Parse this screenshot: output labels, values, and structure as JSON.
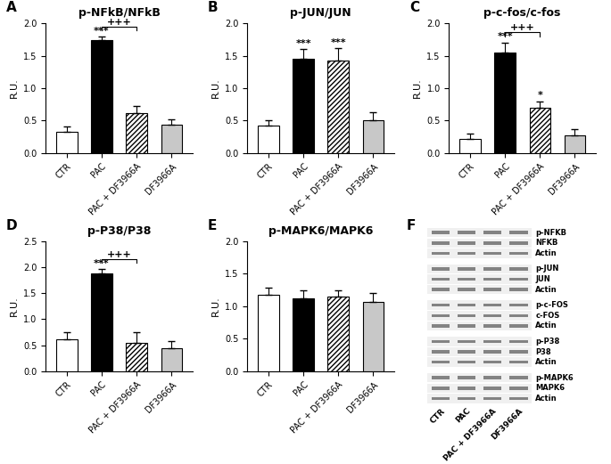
{
  "chart_data": [
    {
      "type": "bar",
      "panel": "A",
      "title": "p-NFkB/NFkB",
      "y_label": "R.U.",
      "categories": [
        "CTR",
        "PAC",
        "PAC + DF3966A",
        "DF3966A"
      ],
      "values": [
        0.33,
        1.74,
        0.62,
        0.44
      ],
      "errors": [
        0.08,
        0.05,
        0.1,
        0.08
      ],
      "colors": [
        "#ffffff",
        "#000000",
        "#ffffff",
        "#c8c8c8"
      ],
      "ylim": [
        0,
        2.0
      ],
      "yticks": [
        {
          "value": 0,
          "label": "0.0"
        },
        {
          "value": 0.5,
          "label": "0.5"
        },
        {
          "value": 1.0,
          "label": "1.0"
        },
        {
          "value": 1.5,
          "label": "1.5"
        },
        {
          "value": 2.0,
          "label": "2.0"
        }
      ],
      "significance": [
        {
          "text": "***",
          "category": "PAC"
        }
      ],
      "brackets": [
        {
          "text": "+++",
          "from": "PAC",
          "to": "PAC + DF3966A"
        }
      ]
    },
    {
      "type": "bar",
      "panel": "B",
      "title": "p-JUN/JUN",
      "y_label": "R.U.",
      "categories": [
        "CTR",
        "PAC",
        "PAC + DF3966A",
        "DF3966A"
      ],
      "values": [
        0.42,
        1.45,
        1.43,
        0.51
      ],
      "errors": [
        0.08,
        0.15,
        0.18,
        0.12
      ],
      "colors": [
        "#ffffff",
        "#000000",
        "#ffffff",
        "#c8c8c8"
      ],
      "ylim": [
        0,
        2.0
      ],
      "yticks": [
        {
          "value": 0,
          "label": "0.0"
        },
        {
          "value": 0.5,
          "label": "0.5"
        },
        {
          "value": 1.0,
          "label": "1.0"
        },
        {
          "value": 1.5,
          "label": "1.5"
        },
        {
          "value": 2.0,
          "label": "2.0"
        }
      ],
      "significance": [
        {
          "text": "***",
          "category": "PAC"
        },
        {
          "text": "***",
          "category": "PAC + DF3966A"
        }
      ],
      "brackets": []
    },
    {
      "type": "bar",
      "panel": "C",
      "title": "p-c-fos/c-fos",
      "y_label": "R.U.",
      "categories": [
        "CTR",
        "PAC",
        "PAC + DF3966A",
        "DF3966A"
      ],
      "values": [
        0.22,
        1.55,
        0.7,
        0.27
      ],
      "errors": [
        0.08,
        0.15,
        0.1,
        0.1
      ],
      "colors": [
        "#ffffff",
        "#000000",
        "#ffffff",
        "#c8c8c8"
      ],
      "ylim": [
        0,
        2.0
      ],
      "yticks": [
        {
          "value": 0,
          "label": "0.0"
        },
        {
          "value": 0.5,
          "label": "0.5"
        },
        {
          "value": 1.0,
          "label": "1.0"
        },
        {
          "value": 1.5,
          "label": "1.5"
        },
        {
          "value": 2.0,
          "label": "2.0"
        }
      ],
      "significance": [
        {
          "text": "***",
          "category": "PAC"
        },
        {
          "text": "*",
          "category": "PAC + DF3966A"
        }
      ],
      "brackets": [
        {
          "text": "+++",
          "from": "PAC",
          "to": "PAC + DF3966A"
        }
      ]
    },
    {
      "type": "bar",
      "panel": "D",
      "title": "p-P38/P38",
      "y_label": "R.U.",
      "categories": [
        "CTR",
        "PAC",
        "PAC + DF3966A",
        "DF3966A"
      ],
      "values": [
        0.62,
        1.88,
        0.55,
        0.45
      ],
      "errors": [
        0.13,
        0.08,
        0.2,
        0.13
      ],
      "colors": [
        "#ffffff",
        "#000000",
        "#ffffff",
        "#c8c8c8"
      ],
      "ylim": [
        0,
        2.5
      ],
      "yticks": [
        {
          "value": 0,
          "label": "0.0"
        },
        {
          "value": 0.5,
          "label": "0.5"
        },
        {
          "value": 1.0,
          "label": "1.0"
        },
        {
          "value": 1.5,
          "label": "1.5"
        },
        {
          "value": 2.0,
          "label": "2.0"
        },
        {
          "value": 2.5,
          "label": "2.5"
        }
      ],
      "significance": [
        {
          "text": "***",
          "category": "PAC"
        }
      ],
      "brackets": [
        {
          "text": "+++",
          "from": "PAC",
          "to": "PAC + DF3966A"
        }
      ]
    },
    {
      "type": "bar",
      "panel": "E",
      "title": "p-MAPK6/MAPK6",
      "y_label": "R.U.",
      "categories": [
        "CTR",
        "PAC",
        "PAC + DF3966A",
        "DF3966A"
      ],
      "values": [
        1.18,
        1.12,
        1.15,
        1.07
      ],
      "errors": [
        0.1,
        0.12,
        0.1,
        0.13
      ],
      "colors": [
        "#ffffff",
        "#000000",
        "#ffffff",
        "#c8c8c8"
      ],
      "ylim": [
        0,
        2.0
      ],
      "yticks": [
        {
          "value": 0,
          "label": "0.0"
        },
        {
          "value": 0.5,
          "label": "0.5"
        },
        {
          "value": 1.0,
          "label": "1.0"
        },
        {
          "value": 1.5,
          "label": "1.5"
        },
        {
          "value": 2.0,
          "label": "2.0"
        }
      ],
      "significance": [],
      "brackets": []
    }
  ],
  "blot": {
    "panel": "F",
    "lanes": [
      "CTR",
      "PAC",
      "PAC + DF3966A",
      "DF3966A"
    ],
    "groups": [
      [
        "p-NFKB",
        "NFKB",
        "Actin"
      ],
      [
        "p-JUN",
        "JUN",
        "Actin"
      ],
      [
        "p-c-FOS",
        "c-FOS",
        "Actin"
      ],
      [
        "p-P38",
        "P38",
        "Actin"
      ],
      [
        "p-MAPK6",
        "MAPK6",
        "Actin"
      ]
    ]
  }
}
